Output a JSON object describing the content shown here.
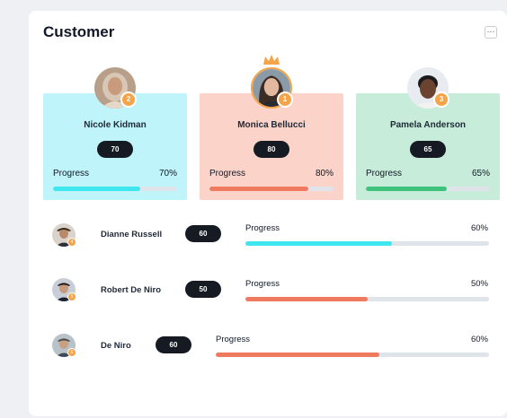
{
  "header": {
    "title": "Customer",
    "more_icon": "ellipsis-icon",
    "more_label": "···"
  },
  "colors": {
    "cyan": "#3ee6ee",
    "salmon": "#ef7a60",
    "green": "#3ec47a",
    "card_cyan": "#bff4fb",
    "card_salmon": "#fbd3c8",
    "card_green": "#c7ecd9",
    "badge": "#f5a44a",
    "pill": "#151a23",
    "track": "#dfe3ea"
  },
  "top_customers": [
    {
      "rank": "2",
      "name": "Nicole Kidman",
      "score": "70",
      "progress_label": "Progress",
      "progress_text": "70%",
      "progress": 0.7,
      "crown": false
    },
    {
      "rank": "1",
      "name": "Monica Bellucci",
      "score": "80",
      "progress_label": "Progress",
      "progress_text": "80%",
      "progress": 0.8,
      "crown": true
    },
    {
      "rank": "3",
      "name": "Pamela Anderson",
      "score": "65",
      "progress_label": "Progress",
      "progress_text": "65%",
      "progress": 0.65,
      "crown": false
    }
  ],
  "customers": [
    {
      "name": "Dianne Russell",
      "score": "60",
      "progress_label": "Progress",
      "progress_text": "60%",
      "progress": 0.6
    },
    {
      "name": "Robert De Niro",
      "score": "50",
      "progress_label": "Progress",
      "progress_text": "50%",
      "progress": 0.5
    },
    {
      "name": "De Niro",
      "score": "60",
      "progress_label": "Progress",
      "progress_text": "60%",
      "progress": 0.6
    }
  ]
}
